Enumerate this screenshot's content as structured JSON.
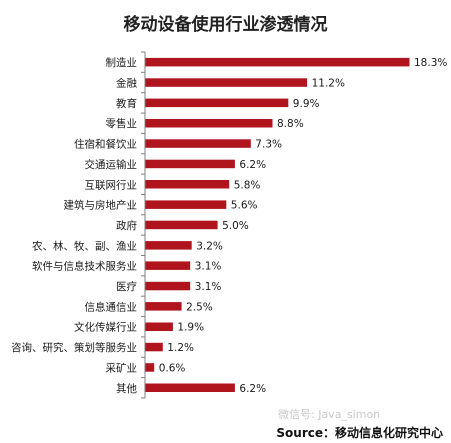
{
  "chart_data": {
    "type": "bar",
    "orientation": "horizontal",
    "title": "移动设备使用行业渗透情况",
    "categories": [
      "制造业",
      "金融",
      "教育",
      "零售业",
      "住宿和餐饮业",
      "交通运输业",
      "互联网行业",
      "建筑与房地产业",
      "政府",
      "农、林、牧、副、渔业",
      "软件与信息技术服务业",
      "医疗",
      "信息通信业",
      "文化传媒行业",
      "咨询、研究、策划等服务业",
      "采矿业",
      "其他"
    ],
    "values": [
      18.3,
      11.2,
      9.9,
      8.8,
      7.3,
      6.2,
      5.8,
      5.6,
      5.0,
      3.2,
      3.1,
      3.1,
      2.5,
      1.9,
      1.2,
      0.6,
      6.2
    ],
    "value_labels": [
      "18.3%",
      "11.2%",
      "9.9%",
      "8.8%",
      "7.3%",
      "6.2%",
      "5.8%",
      "5.6%",
      "5.0%",
      "3.2%",
      "3.1%",
      "3.1%",
      "2.5%",
      "1.9%",
      "1.2%",
      "0.6%",
      "6.2%"
    ],
    "xlim": [
      0,
      18.3
    ],
    "grid": false,
    "legend": "none",
    "colors": {
      "bar": "#b0141c",
      "axis": "#7f7f7f"
    }
  },
  "watermark": "微信号: Java_simon",
  "source": "Source：移动信息化研究中心"
}
